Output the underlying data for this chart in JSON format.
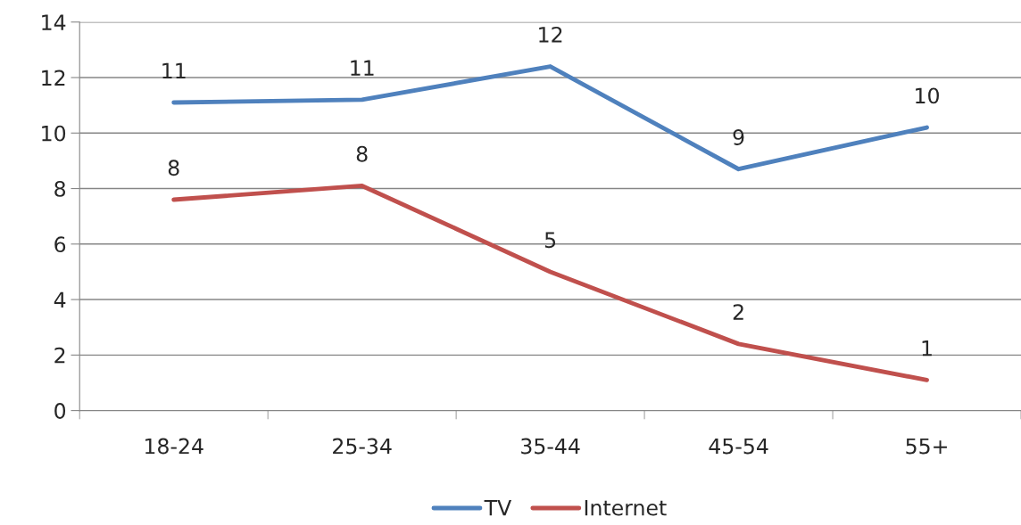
{
  "chart_data": {
    "type": "line",
    "categories": [
      "18-24",
      "25-34",
      "35-44",
      "45-54",
      "55+"
    ],
    "series": [
      {
        "name": "TV",
        "color": "#4f81bd",
        "values": [
          11.1,
          11.2,
          12.4,
          8.7,
          10.2
        ],
        "value_labels": [
          "11",
          "11",
          "12",
          "9",
          "10"
        ]
      },
      {
        "name": "Internet",
        "color": "#c0504d",
        "values": [
          7.6,
          8.1,
          5.0,
          2.4,
          1.1
        ],
        "value_labels": [
          "8",
          "8",
          "5",
          "2",
          "1"
        ]
      }
    ],
    "ylim": [
      0,
      14
    ],
    "yticks": [
      0,
      2,
      4,
      6,
      8,
      10,
      12,
      14
    ],
    "grid": "y",
    "legend": "bottom",
    "marker": "none",
    "line_style": "solid"
  }
}
